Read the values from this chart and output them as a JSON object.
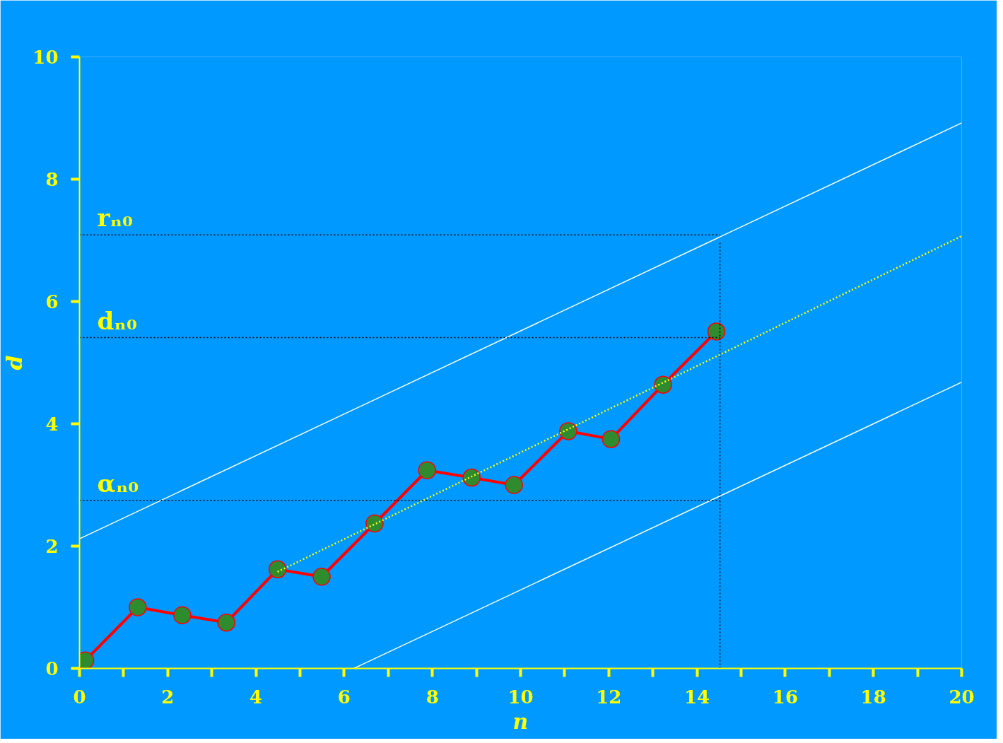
{
  "chart_data": {
    "type": "line",
    "xlabel": "n",
    "ylabel": "d",
    "xlim": [
      0,
      20
    ],
    "ylim": [
      0,
      10
    ],
    "xticks": [
      0,
      {
        "value": 1,
        "label": null
      },
      2,
      {
        "value": 3,
        "label": null
      },
      4,
      {
        "value": 5,
        "label": null
      },
      6,
      {
        "value": 7,
        "label": null
      },
      8,
      {
        "value": 9,
        "label": null
      },
      10,
      {
        "value": 11,
        "label": null
      },
      12,
      {
        "value": 13,
        "label": null
      },
      14,
      {
        "value": 15,
        "label": null
      },
      16,
      {
        "value": 17,
        "label": null
      },
      18,
      {
        "value": 19,
        "label": null
      },
      20
    ],
    "yticks": [
      0,
      2,
      4,
      6,
      8,
      10
    ],
    "grid": false,
    "series": [
      {
        "color": "#ff0000",
        "line_style": "solid",
        "marker": "circle",
        "x": [
          0.13,
          1.32,
          2.33,
          3.33,
          4.49,
          5.49,
          6.69,
          7.88,
          8.89,
          9.85,
          11.08,
          12.05,
          13.23,
          14.44
        ],
        "values": [
          0.13,
          1.0,
          0.87,
          0.75,
          1.62,
          1.5,
          2.37,
          3.24,
          3.12,
          3.0,
          3.88,
          3.75,
          4.64,
          5.51
        ]
      },
      {
        "color": "#ffffff",
        "line_style": "solid",
        "marker": "none",
        "x": [
          0,
          20
        ],
        "values": [
          2.12,
          8.92
        ]
      },
      {
        "color": "#ffffff",
        "line_style": "solid",
        "marker": "none",
        "x": [
          6.22,
          20
        ],
        "values": [
          0,
          4.68
        ]
      },
      {
        "name": "rₙ₀",
        "color": "#000000",
        "line_style": "dotted",
        "marker": "none",
        "x": [
          0,
          14.52
        ],
        "values": [
          7.09,
          7.09
        ]
      },
      {
        "name": "dₙ₀",
        "color": "#000000",
        "line_style": "dotted",
        "marker": "none",
        "x": [
          0,
          14.52
        ],
        "values": [
          5.41,
          5.41
        ]
      },
      {
        "name": "αₙ₀",
        "color": "#000000",
        "line_style": "dotted",
        "marker": "none",
        "x": [
          0,
          14.52
        ],
        "values": [
          2.75,
          2.75
        ]
      },
      {
        "color": "#000000",
        "line_style": "dotted",
        "marker": "none",
        "x": [
          14.52,
          14.52
        ],
        "values": [
          0,
          6.96
        ]
      },
      {
        "color": "#ffff00",
        "line_style": "dotted",
        "marker": "none",
        "x": [
          4.49,
          20
        ],
        "values": [
          1.58,
          7.07
        ]
      }
    ]
  }
}
